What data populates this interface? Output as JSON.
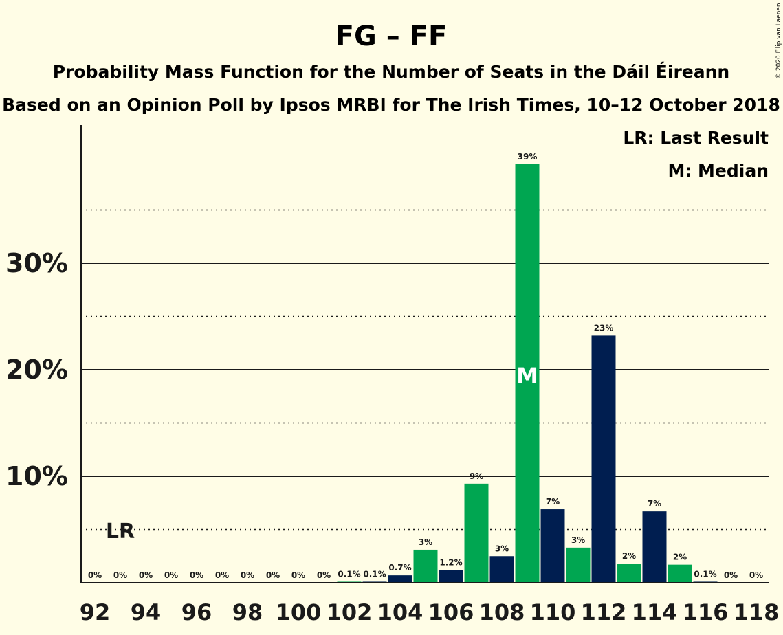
{
  "title": "FG – FF",
  "subtitle1": "Probability Mass Function for the Number of Seats in the Dáil Éireann",
  "subtitle2": "Based on an Opinion Poll by Ipsos MRBI for The Irish Times, 10–12 October 2018",
  "copyright": "© 2020 Filip van Laenen",
  "legend": {
    "last_result": "LR: Last Result",
    "median": "M: Median"
  },
  "markers": {
    "last_result_label": "LR",
    "last_result_seat": 93,
    "median_label": "M",
    "median_seat": 109
  },
  "colors": {
    "green": "#00A651",
    "navy": "#001E50",
    "background": "#FFFDE6"
  },
  "chart_data": {
    "type": "bar",
    "title": "FG – FF",
    "xlabel": "",
    "ylabel": "",
    "ylim": [
      0,
      43
    ],
    "yticks_major": [
      10,
      20,
      30
    ],
    "yticks_minor": [
      5,
      15,
      25,
      35
    ],
    "ytick_labels": [
      "10%",
      "20%",
      "30%"
    ],
    "x_tick_labels": [
      "92",
      "94",
      "96",
      "98",
      "100",
      "102",
      "104",
      "106",
      "108",
      "110",
      "112",
      "114",
      "116",
      "118"
    ],
    "grid": true,
    "legend_position": "top-right",
    "categories": [
      92,
      93,
      94,
      95,
      96,
      97,
      98,
      99,
      100,
      101,
      102,
      103,
      104,
      105,
      106,
      107,
      108,
      109,
      110,
      111,
      112,
      113,
      114,
      115,
      116,
      117,
      118
    ],
    "values": [
      0,
      0,
      0,
      0,
      0,
      0,
      0,
      0,
      0,
      0,
      0.1,
      0.1,
      0.7,
      3.1,
      1.2,
      9.3,
      2.5,
      39.3,
      6.9,
      3.3,
      23.2,
      1.8,
      6.7,
      1.7,
      0.1,
      0,
      0
    ],
    "labels": [
      "0%",
      "0%",
      "0%",
      "0%",
      "0%",
      "0%",
      "0%",
      "0%",
      "0%",
      "0%",
      "0.1%",
      "0.1%",
      "0.7%",
      "3%",
      "1.2%",
      "9%",
      "3%",
      "39%",
      "7%",
      "3%",
      "23%",
      "2%",
      "7%",
      "2%",
      "0.1%",
      "0%",
      "0%"
    ],
    "colors": [
      "green",
      "navy",
      "green",
      "navy",
      "green",
      "navy",
      "green",
      "navy",
      "green",
      "navy",
      "green",
      "navy",
      "navy",
      "green",
      "navy",
      "green",
      "navy",
      "green",
      "navy",
      "green",
      "navy",
      "green",
      "navy",
      "green",
      "navy",
      "green",
      "navy"
    ]
  }
}
